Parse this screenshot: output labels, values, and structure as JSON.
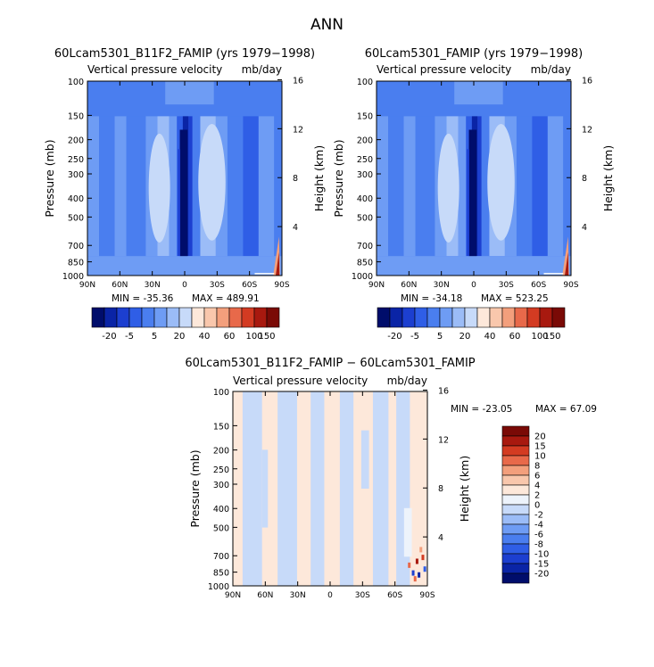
{
  "main_title": "ANN",
  "colors": {
    "model_scale": [
      "#000d6b",
      "#0a24a6",
      "#1c3fd0",
      "#2f5ee6",
      "#4a7eef",
      "#6e9cf4",
      "#9bbcf7",
      "#c7daf9",
      "#fde8da",
      "#f9c7ac",
      "#f39f7c",
      "#e8694a",
      "#d33b22",
      "#a8190f",
      "#7a0a06"
    ],
    "diff_scale": [
      "#000d6b",
      "#0a24a6",
      "#1c3fd0",
      "#2f5ee6",
      "#4a7eef",
      "#6e9cf4",
      "#9bbcf7",
      "#c7daf9",
      "#edf3fb",
      "#fde8da",
      "#f9c7ac",
      "#f39f7c",
      "#e8694a",
      "#d33b22",
      "#a8190f",
      "#7a0a06"
    ]
  },
  "chart_data": [
    {
      "type": "heatmap",
      "title": "60Lcam5301_B11F2_FAMIP (yrs 1979−1998)",
      "subtitle_left": "Vertical pressure velocity",
      "subtitle_right": "mb/day",
      "ylabel": "Pressure (mb)",
      "ylabel_right": "Height (km)",
      "x_ticks": [
        "90N",
        "60N",
        "30N",
        "0",
        "30S",
        "60S",
        "90S"
      ],
      "y_ticks": [
        "100",
        "150",
        "200",
        "250",
        "300",
        "400",
        "500",
        "700",
        "850",
        "1000"
      ],
      "y_ticks_right": [
        "16",
        "12",
        "8",
        "4"
      ],
      "xlim": [
        90,
        -90
      ],
      "ylim": [
        1000,
        100
      ],
      "y_scale": "log",
      "min_text": "MIN = -35.36",
      "max_text": "MAX = 489.91",
      "min": -35.36,
      "max": 489.91,
      "colorbar_labels": [
        "-20",
        "-5",
        "5",
        "20",
        "40",
        "60",
        "100",
        "150"
      ]
    },
    {
      "type": "heatmap",
      "title": "60Lcam5301_FAMIP (yrs 1979−1998)",
      "subtitle_left": "Vertical pressure velocity",
      "subtitle_right": "mb/day",
      "ylabel": "Pressure (mb)",
      "ylabel_right": "Height (km)",
      "x_ticks": [
        "90N",
        "60N",
        "30N",
        "0",
        "30S",
        "60S",
        "90S"
      ],
      "y_ticks": [
        "100",
        "150",
        "200",
        "250",
        "300",
        "400",
        "500",
        "700",
        "850",
        "1000"
      ],
      "y_ticks_right": [
        "16",
        "12",
        "8",
        "4"
      ],
      "xlim": [
        90,
        -90
      ],
      "ylim": [
        1000,
        100
      ],
      "y_scale": "log",
      "min_text": "MIN = -34.18",
      "max_text": "MAX = 523.25",
      "min": -34.18,
      "max": 523.25,
      "colorbar_labels": [
        "-20",
        "-5",
        "5",
        "20",
        "40",
        "60",
        "100",
        "150"
      ]
    },
    {
      "type": "heatmap",
      "title": "60Lcam5301_B11F2_FAMIP − 60Lcam5301_FAMIP",
      "subtitle_left": "Vertical pressure velocity",
      "subtitle_right": "mb/day",
      "ylabel": "Pressure (mb)",
      "ylabel_right": "Height (km)",
      "x_ticks": [
        "90N",
        "60N",
        "30N",
        "0",
        "30S",
        "60S",
        "90S"
      ],
      "y_ticks": [
        "100",
        "150",
        "200",
        "250",
        "300",
        "400",
        "500",
        "700",
        "850",
        "1000"
      ],
      "y_ticks_right": [
        "16",
        "12",
        "8",
        "4"
      ],
      "xlim": [
        90,
        -90
      ],
      "ylim": [
        1000,
        100
      ],
      "y_scale": "log",
      "min_text": "MIN = -23.05",
      "max_text": "MAX =   67.09",
      "min": -23.05,
      "max": 67.09,
      "colorbar_labels": [
        "20",
        "15",
        "10",
        "8",
        "6",
        "4",
        "2",
        "0",
        "-2",
        "-4",
        "-6",
        "-8",
        "-10",
        "-15",
        "-20"
      ]
    }
  ]
}
